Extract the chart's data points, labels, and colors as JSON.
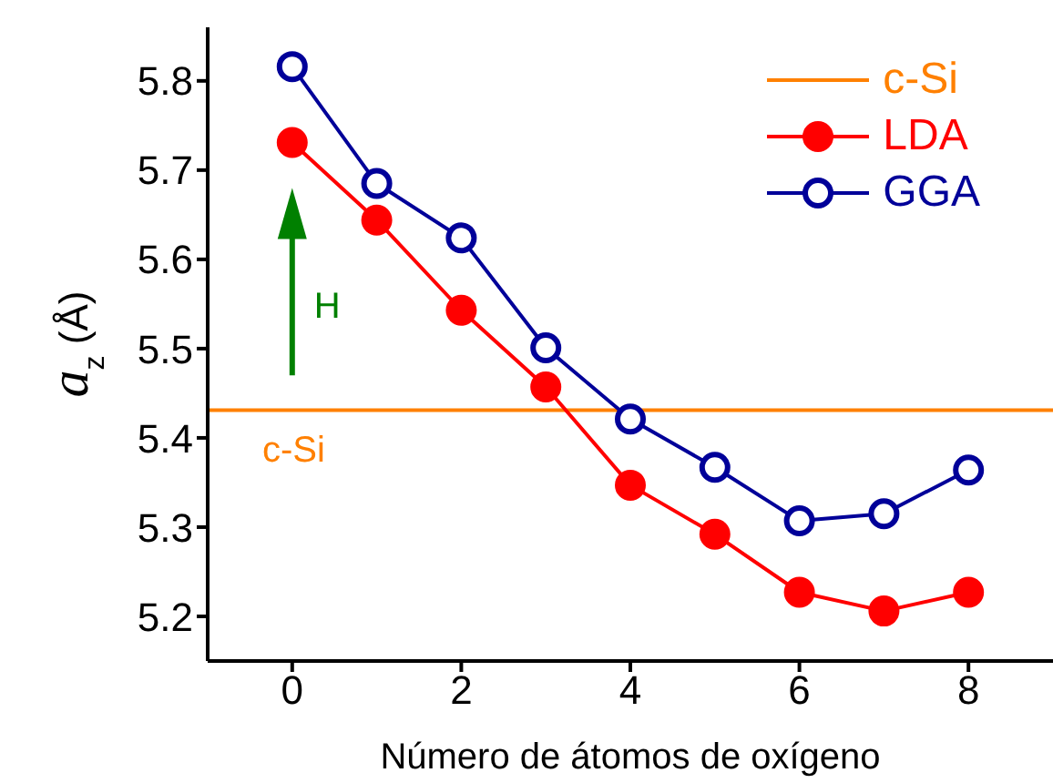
{
  "chart_data": {
    "type": "line",
    "xlabel": "Número de átomos de oxígeno",
    "ylabel": "a$_{z}$ (Å)",
    "x": [
      0,
      1,
      2,
      3,
      4,
      5,
      6,
      7,
      8
    ],
    "series": [
      {
        "name": "LDA",
        "color": "#ff0000",
        "values": [
          5.731,
          5.644,
          5.543,
          5.457,
          5.347,
          5.292,
          5.227,
          5.206,
          5.227
        ]
      },
      {
        "name": "GGA",
        "color": "#000099",
        "values": [
          5.816,
          5.685,
          5.624,
          5.501,
          5.421,
          5.367,
          5.307,
          5.315,
          5.364
        ]
      }
    ],
    "ref_lines": [
      {
        "axis": "y",
        "value": 5.431,
        "label": "c-Si",
        "color": "#ff8000"
      }
    ],
    "annotations": [
      "H"
    ],
    "xlim": [
      -1,
      9
    ],
    "xticks": [
      0,
      2,
      4,
      6,
      8
    ],
    "ylim": [
      5.15,
      5.86
    ],
    "yticks": [
      5.2,
      5.3,
      5.4,
      5.5,
      5.6,
      5.7,
      5.8
    ],
    "marker": "circle",
    "legend": "top right"
  }
}
